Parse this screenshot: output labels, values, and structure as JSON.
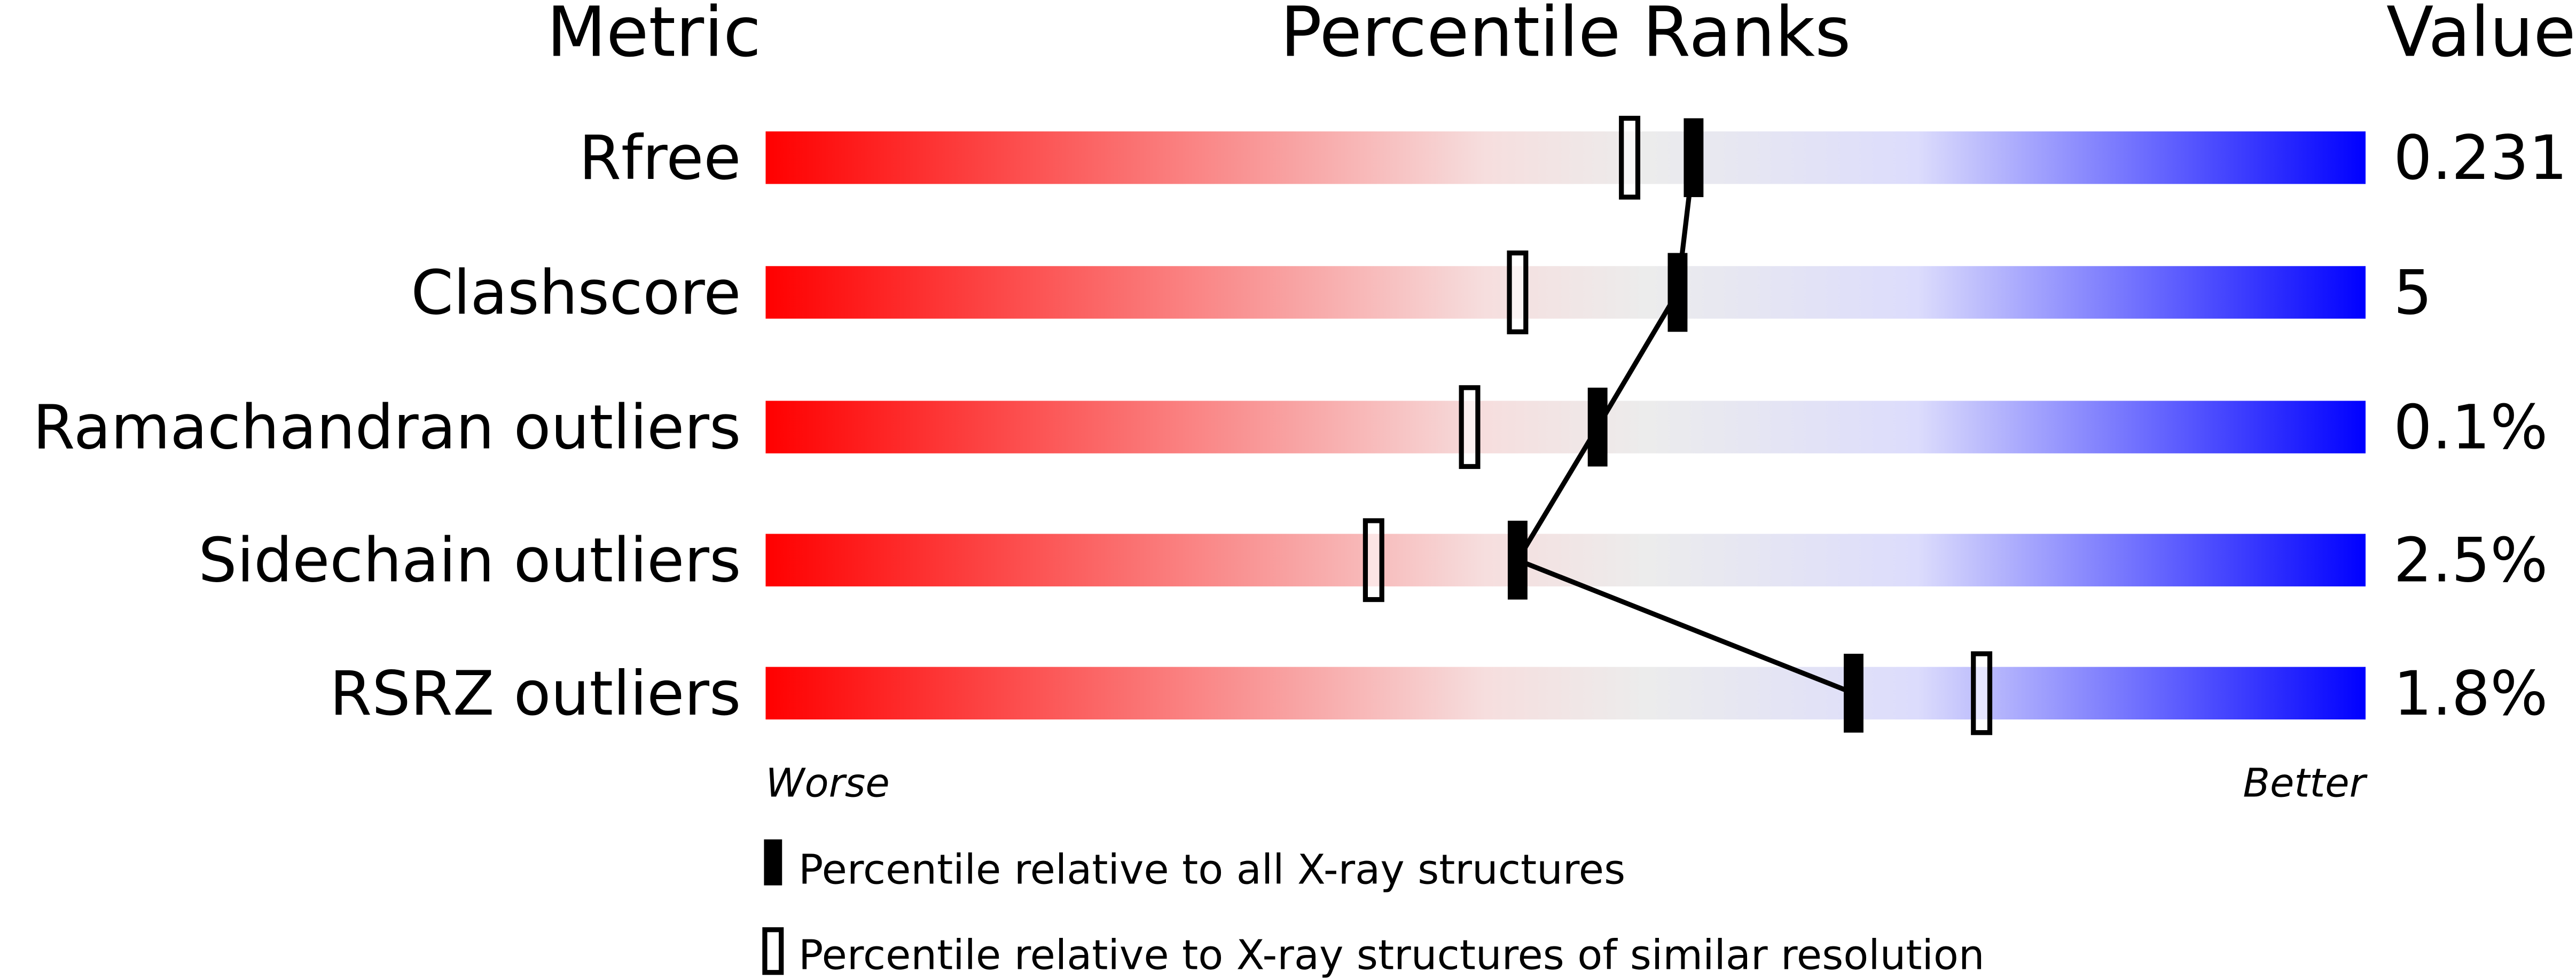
{
  "chart_data": {
    "type": "percentile-ranks",
    "headers": {
      "metric": "Metric",
      "ranks": "Percentile Ranks",
      "value": "Value"
    },
    "xlim": [
      0,
      100
    ],
    "axis_ends": {
      "left": "Worse",
      "right": "Better"
    },
    "gradient_colors": [
      "#ff0000",
      "#f6dede",
      "#ececec",
      "#dcdcfc",
      "#0000ff"
    ],
    "metrics": [
      {
        "name": "Rfree",
        "value": "0.231",
        "percentile_all": 58,
        "percentile_similar": 54
      },
      {
        "name": "Clashscore",
        "value": "5",
        "percentile_all": 57,
        "percentile_similar": 47
      },
      {
        "name": "Ramachandran outliers",
        "value": "0.1%",
        "percentile_all": 52,
        "percentile_similar": 44
      },
      {
        "name": "Sidechain outliers",
        "value": "2.5%",
        "percentile_all": 47,
        "percentile_similar": 38
      },
      {
        "name": "RSRZ outliers",
        "value": "1.8%",
        "percentile_all": 68,
        "percentile_similar": 76
      }
    ],
    "legend": [
      {
        "marker": "filled",
        "label": "Percentile relative to all X-ray structures"
      },
      {
        "marker": "open",
        "label": "Percentile relative to X-ray structures of similar resolution"
      }
    ]
  }
}
